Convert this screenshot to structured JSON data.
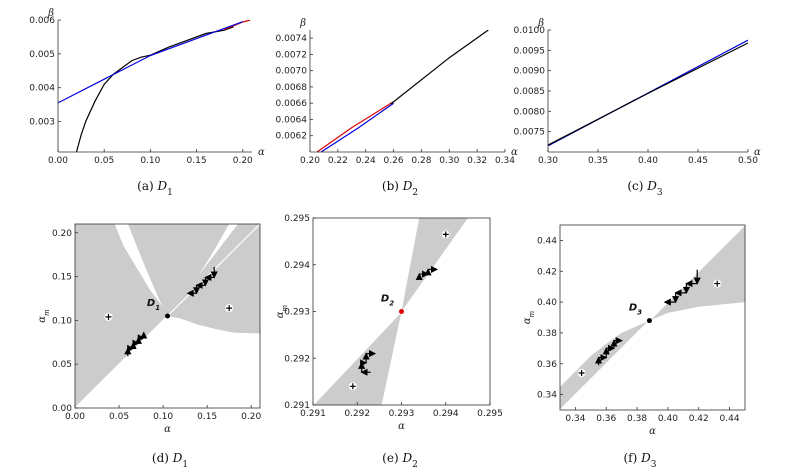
{
  "chart_data": [
    {
      "id": "a",
      "type": "line",
      "caption": "(a)",
      "caption_var": "D",
      "caption_sub": "1",
      "xlabel": "α",
      "ylabel": "β",
      "xlim": [
        0,
        0.21
      ],
      "ylim": [
        0.0021,
        0.006
      ],
      "xticks": [
        0.0,
        0.05,
        0.1,
        0.15,
        0.2
      ],
      "xtick_labels": [
        "0.00",
        "0.05",
        "0.10",
        "0.15",
        "0.20"
      ],
      "yticks": [
        0.003,
        0.004,
        0.005,
        0.006
      ],
      "ytick_labels": [
        "0.003",
        "0.004",
        "0.005",
        "0.006"
      ],
      "series": [
        {
          "name": "black",
          "color": "#000000",
          "x": [
            0.02,
            0.025,
            0.03,
            0.04,
            0.05,
            0.06,
            0.07,
            0.08,
            0.09,
            0.1,
            0.12,
            0.14,
            0.16,
            0.18,
            0.19
          ],
          "y": [
            0.0021,
            0.0026,
            0.003,
            0.0036,
            0.0041,
            0.0044,
            0.0046,
            0.0048,
            0.0049,
            0.00496,
            0.0052,
            0.0054,
            0.0056,
            0.0057,
            0.0058
          ]
        },
        {
          "name": "red",
          "color": "#dd0000",
          "x": [
            0.18,
            0.19,
            0.2,
            0.208
          ],
          "y": [
            0.00572,
            0.00583,
            0.00594,
            0.006
          ]
        },
        {
          "name": "blue",
          "color": "#0000dd",
          "x": [
            0.0,
            0.05,
            0.1,
            0.15,
            0.2
          ],
          "y": [
            0.00355,
            0.00425,
            0.00495,
            0.00545,
            0.00595
          ]
        }
      ]
    },
    {
      "id": "b",
      "type": "line",
      "caption": "(b)",
      "caption_var": "D",
      "caption_sub": "2",
      "xlabel": "α",
      "ylabel": "β",
      "xlim": [
        0.2,
        0.34
      ],
      "ylim": [
        0.006,
        0.0075
      ],
      "xticks": [
        0.2,
        0.22,
        0.24,
        0.26,
        0.28,
        0.3,
        0.32,
        0.34
      ],
      "xtick_labels": [
        "0.20",
        "0.22",
        "0.24",
        "0.26",
        "0.28",
        "0.30",
        "0.32",
        "0.34"
      ],
      "yticks": [
        0.0062,
        0.0064,
        0.0066,
        0.0068,
        0.007,
        0.0072,
        0.0074
      ],
      "ytick_labels": [
        "0.0062",
        "0.0064",
        "0.0066",
        "0.0068",
        "0.0070",
        "0.0072",
        "0.0074"
      ],
      "series": [
        {
          "name": "red",
          "color": "#dd0000",
          "x": [
            0.205,
            0.23,
            0.26
          ],
          "y": [
            0.006,
            0.0063,
            0.00662
          ]
        },
        {
          "name": "blue",
          "color": "#0000dd",
          "x": [
            0.208,
            0.235,
            0.26
          ],
          "y": [
            0.006,
            0.0063,
            0.0066
          ]
        },
        {
          "name": "black",
          "color": "#000000",
          "x": [
            0.258,
            0.3,
            0.328
          ],
          "y": [
            0.00659,
            0.00716,
            0.0075
          ]
        }
      ]
    },
    {
      "id": "c",
      "type": "line",
      "caption": "(c)",
      "caption_var": "D",
      "caption_sub": "3",
      "xlabel": "α",
      "ylabel": "β",
      "xlim": [
        0.3,
        0.5
      ],
      "ylim": [
        0.007,
        0.01
      ],
      "xticks": [
        0.3,
        0.35,
        0.4,
        0.45,
        0.5
      ],
      "xtick_labels": [
        "0.30",
        "0.35",
        "0.40",
        "0.45",
        "0.50"
      ],
      "yticks": [
        0.0075,
        0.008,
        0.0085,
        0.009,
        0.0095,
        0.01
      ],
      "ytick_labels": [
        "0.0075",
        "0.0080",
        "0.0085",
        "0.0090",
        "0.0095",
        "0.0100"
      ],
      "series": [
        {
          "name": "blue",
          "color": "#0000dd",
          "x": [
            0.3,
            0.4,
            0.5
          ],
          "y": [
            0.00715,
            0.00845,
            0.00975
          ]
        },
        {
          "name": "black",
          "color": "#000000",
          "x": [
            0.3,
            0.4,
            0.5
          ],
          "y": [
            0.00717,
            0.00844,
            0.00968
          ]
        }
      ]
    },
    {
      "id": "d",
      "type": "area",
      "caption": "(d)",
      "caption_var": "D",
      "caption_sub": "1",
      "xlabel": "α",
      "ylabel": "α",
      "ylabel_sub": "m",
      "xlim": [
        0,
        0.21
      ],
      "ylim": [
        0,
        0.21
      ],
      "xticks": [
        0,
        0.05,
        0.1,
        0.15,
        0.2
      ],
      "xtick_labels": [
        "0.00",
        "0.05",
        "0.10",
        "0.15",
        "0.20"
      ],
      "yticks": [
        0,
        0.05,
        0.1,
        0.15,
        0.2
      ],
      "ytick_labels": [
        "0.00",
        "0.05",
        "0.10",
        "0.15",
        "0.20"
      ],
      "regions": [
        [
          [
            0.0,
            0.0
          ],
          [
            0.0,
            0.21
          ],
          [
            0.045,
            0.21
          ],
          [
            0.055,
            0.185
          ],
          [
            0.07,
            0.16
          ],
          [
            0.085,
            0.135
          ],
          [
            0.1,
            0.115
          ],
          [
            0.105,
            0.105
          ]
        ],
        [
          [
            0.105,
            0.105
          ],
          [
            0.12,
            0.102
          ],
          [
            0.14,
            0.095
          ],
          [
            0.16,
            0.09
          ],
          [
            0.18,
            0.086
          ],
          [
            0.21,
            0.085
          ],
          [
            0.21,
            0.21
          ],
          [
            0.185,
            0.21
          ]
        ],
        [
          [
            0.06,
            0.21
          ],
          [
            0.08,
            0.16
          ],
          [
            0.095,
            0.125
          ],
          [
            0.105,
            0.105
          ],
          [
            0.13,
            0.135
          ],
          [
            0.155,
            0.175
          ],
          [
            0.175,
            0.21
          ]
        ]
      ],
      "diagonal": [
        [
          0.0,
          0.0
        ],
        [
          0.21,
          0.21
        ]
      ],
      "equilibrium": {
        "label": "D",
        "sub": "1",
        "x": 0.105,
        "y": 0.105,
        "color": "#000000"
      },
      "plus_markers": [
        [
          0.038,
          0.104
        ],
        [
          0.175,
          0.114
        ]
      ],
      "staircases": [
        [
          [
            0.06,
            0.059
          ],
          [
            0.06,
            0.068
          ],
          [
            0.066,
            0.068
          ],
          [
            0.066,
            0.074
          ],
          [
            0.072,
            0.074
          ],
          [
            0.072,
            0.08
          ],
          [
            0.078,
            0.08
          ],
          [
            0.078,
            0.086
          ]
        ],
        [
          [
            0.158,
            0.161
          ],
          [
            0.158,
            0.149
          ],
          [
            0.148,
            0.149
          ],
          [
            0.148,
            0.14
          ],
          [
            0.138,
            0.14
          ],
          [
            0.138,
            0.131
          ],
          [
            0.128,
            0.131
          ]
        ]
      ]
    },
    {
      "id": "e",
      "type": "area",
      "caption": "(e)",
      "caption_var": "D",
      "caption_sub": "2",
      "xlabel": "α",
      "ylabel": "α",
      "ylabel_sub": "m",
      "xlim": [
        0.291,
        0.295
      ],
      "ylim": [
        0.291,
        0.295
      ],
      "xticks": [
        0.291,
        0.292,
        0.293,
        0.294,
        0.295
      ],
      "xtick_labels": [
        "0.291",
        "0.292",
        "0.293",
        "0.294",
        "0.295"
      ],
      "yticks": [
        0.291,
        0.292,
        0.293,
        0.294,
        0.295
      ],
      "ytick_labels": [
        "0.291",
        "0.292",
        "0.293",
        "0.294",
        "0.295"
      ],
      "regions": [
        [
          [
            0.291,
            0.291
          ],
          [
            0.2925,
            0.291
          ],
          [
            0.293,
            0.293
          ],
          [
            0.2935,
            0.295
          ],
          [
            0.2945,
            0.295
          ],
          [
            0.293,
            0.293
          ],
          [
            0.291,
            0.291
          ]
        ],
        [
          [
            0.291,
            0.291
          ],
          [
            0.29255,
            0.291
          ],
          [
            0.293,
            0.293
          ],
          [
            0.291,
            0.291
          ]
        ],
        [
          [
            0.293,
            0.293
          ],
          [
            0.2934,
            0.295
          ],
          [
            0.29445,
            0.295
          ],
          [
            0.293,
            0.293
          ]
        ]
      ],
      "diagonal": [
        [
          0.291,
          0.291
        ],
        [
          0.295,
          0.295
        ]
      ],
      "equilibrium": {
        "label": "D",
        "sub": "2",
        "x": 0.293,
        "y": 0.293,
        "color": "#dd0000"
      },
      "plus_markers": [
        [
          0.2919,
          0.2914
        ],
        [
          0.294,
          0.29465
        ]
      ],
      "staircases": [
        [
          [
            0.2923,
            0.2917
          ],
          [
            0.2921,
            0.2917
          ],
          [
            0.2921,
            0.2919
          ],
          [
            0.2922,
            0.2919
          ],
          [
            0.2922,
            0.2921
          ],
          [
            0.2924,
            0.2921
          ]
        ],
        [
          [
            0.2934,
            0.2937
          ],
          [
            0.2934,
            0.2938
          ],
          [
            0.2936,
            0.2938
          ],
          [
            0.2936,
            0.2939
          ],
          [
            0.2938,
            0.2939
          ]
        ]
      ]
    },
    {
      "id": "f",
      "type": "area",
      "caption": "(f)",
      "caption_var": "D",
      "caption_sub": "3",
      "xlabel": "α",
      "ylabel": "α",
      "ylabel_sub": "m",
      "xlim": [
        0.33,
        0.45
      ],
      "ylim": [
        0.33,
        0.45
      ],
      "xticks": [
        0.34,
        0.36,
        0.38,
        0.4,
        0.42,
        0.44
      ],
      "xtick_labels": [
        "0.34",
        "0.36",
        "0.38",
        "0.40",
        "0.42",
        "0.44"
      ],
      "yticks": [
        0.34,
        0.36,
        0.38,
        0.4,
        0.42,
        0.44
      ],
      "ytick_labels": [
        "0.34",
        "0.36",
        "0.38",
        "0.40",
        "0.42",
        "0.44"
      ],
      "regions": [
        [
          [
            0.33,
            0.33
          ],
          [
            0.33,
            0.345
          ],
          [
            0.34,
            0.355
          ],
          [
            0.35,
            0.365
          ],
          [
            0.36,
            0.373
          ],
          [
            0.37,
            0.38
          ],
          [
            0.388,
            0.388
          ],
          [
            0.4,
            0.393
          ],
          [
            0.42,
            0.397
          ],
          [
            0.45,
            0.4
          ],
          [
            0.45,
            0.45
          ],
          [
            0.388,
            0.388
          ],
          [
            0.33,
            0.33
          ]
        ]
      ],
      "diagonal": [
        [
          0.33,
          0.33
        ],
        [
          0.45,
          0.45
        ]
      ],
      "equilibrium": {
        "label": "D",
        "sub": "3",
        "x": 0.388,
        "y": 0.388,
        "color": "#000000"
      },
      "plus_markers": [
        [
          0.344,
          0.354
        ],
        [
          0.432,
          0.412
        ]
      ],
      "staircases": [
        [
          [
            0.355,
            0.359
          ],
          [
            0.355,
            0.364
          ],
          [
            0.36,
            0.364
          ],
          [
            0.36,
            0.37
          ],
          [
            0.365,
            0.37
          ],
          [
            0.365,
            0.375
          ],
          [
            0.37,
            0.375
          ]
        ],
        [
          [
            0.419,
            0.421
          ],
          [
            0.419,
            0.412
          ],
          [
            0.412,
            0.412
          ],
          [
            0.412,
            0.406
          ],
          [
            0.405,
            0.406
          ],
          [
            0.405,
            0.4
          ],
          [
            0.398,
            0.4
          ]
        ]
      ]
    }
  ],
  "colors": {
    "region_fill": "#cccccc",
    "axis": "#333333"
  }
}
